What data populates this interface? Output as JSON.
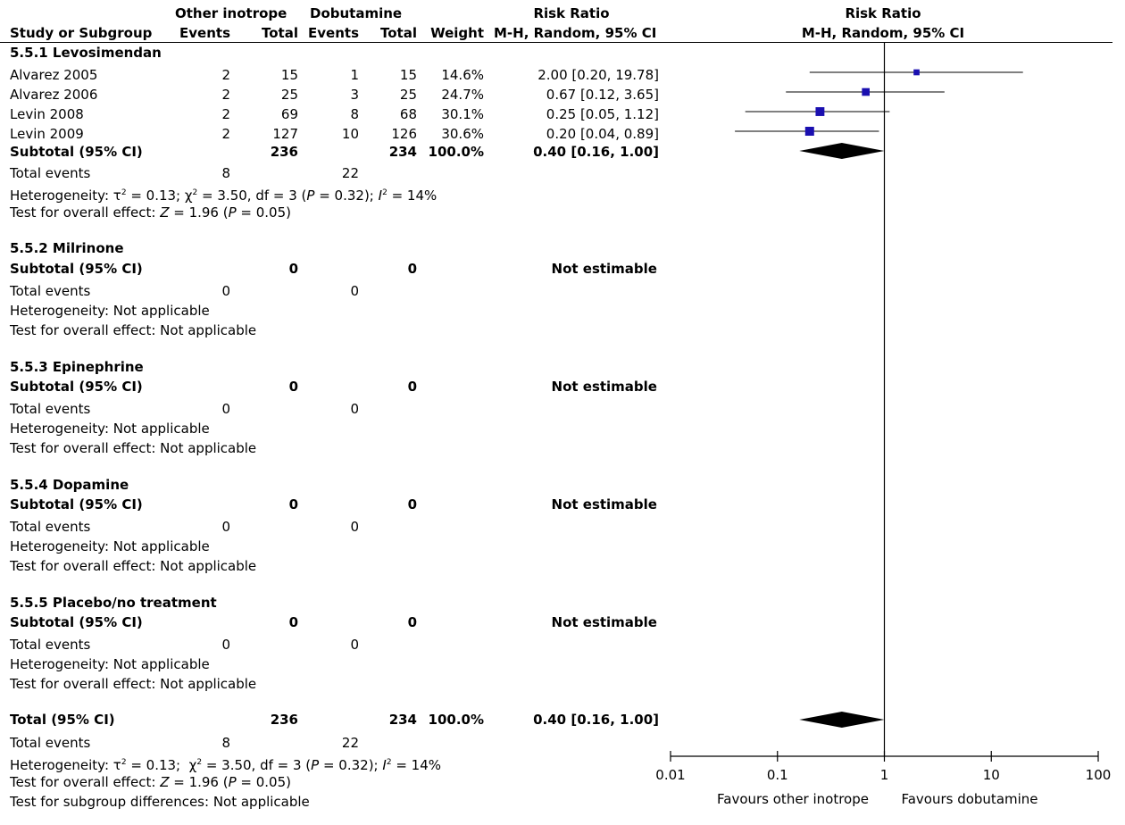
{
  "header": {
    "group1": "Other inotrope",
    "group2": "Dobutamine",
    "rr_title": "Risk Ratio",
    "rr_method": "M-H, Random, 95% CI",
    "plot_title": "Risk Ratio",
    "plot_method": "M-H, Random, 95% CI",
    "col_study": "Study or Subgroup",
    "col_events1": "Events",
    "col_total1": "Total",
    "col_events2": "Events",
    "col_total2": "Total",
    "col_weight": "Weight"
  },
  "subgroups": [
    {
      "title": "5.5.1 Levosimendan",
      "studies": [
        {
          "name": "Alvarez 2005",
          "e1": "2",
          "t1": "15",
          "e2": "1",
          "t2": "15",
          "weight": "14.6%",
          "rr": "2.00 [0.20, 19.78]"
        },
        {
          "name": "Alvarez 2006",
          "e1": "2",
          "t1": "25",
          "e2": "3",
          "t2": "25",
          "weight": "24.7%",
          "rr": "0.67 [0.12, 3.65]"
        },
        {
          "name": "Levin 2008",
          "e1": "2",
          "t1": "69",
          "e2": "8",
          "t2": "68",
          "weight": "30.1%",
          "rr": "0.25 [0.05, 1.12]"
        },
        {
          "name": "Levin 2009",
          "e1": "2",
          "t1": "127",
          "e2": "10",
          "t2": "126",
          "weight": "30.6%",
          "rr": "0.20 [0.04, 0.89]"
        }
      ],
      "subtotal": {
        "label": "Subtotal (95% CI)",
        "t1": "236",
        "t2": "234",
        "weight": "100.0%",
        "rr": "0.40 [0.16, 1.00]"
      },
      "total_events": {
        "label": "Total events",
        "e1": "8",
        "e2": "22"
      },
      "heterogeneity": {
        "prefix": "Heterogeneity: ",
        "tau": "τ",
        "tau_sup": "2",
        "tau_val": " = 0.13; ",
        "chi": "χ",
        "chi_sup": "2",
        "chi_val": " = 3.50, df = 3 (",
        "p": "P",
        "p_val": " = 0.32); ",
        "i": "I",
        "i_sup": "2",
        "i_val": " = 14%"
      },
      "overall": {
        "prefix": "Test for overall effect: ",
        "z": "Z",
        "z_val": " = 1.96 (",
        "p": "P",
        "p_val": " = 0.05)"
      }
    },
    {
      "title": "5.5.2 Milrinone",
      "subtotal": {
        "label": "Subtotal (95% CI)",
        "t1": "0",
        "t2": "0",
        "rr": "Not estimable"
      },
      "total_events": {
        "label": "Total events",
        "e1": "0",
        "e2": "0"
      },
      "heterogeneity_text": "Heterogeneity: Not applicable",
      "overall_text": "Test for overall effect: Not applicable"
    },
    {
      "title": "5.5.3 Epinephrine",
      "subtotal": {
        "label": "Subtotal (95% CI)",
        "t1": "0",
        "t2": "0",
        "rr": "Not estimable"
      },
      "total_events": {
        "label": "Total events",
        "e1": "0",
        "e2": "0"
      },
      "heterogeneity_text": "Heterogeneity: Not applicable",
      "overall_text": "Test for overall effect: Not applicable"
    },
    {
      "title": "5.5.4 Dopamine",
      "subtotal": {
        "label": "Subtotal (95% CI)",
        "t1": "0",
        "t2": "0",
        "rr": "Not estimable"
      },
      "total_events": {
        "label": "Total events",
        "e1": "0",
        "e2": "0"
      },
      "heterogeneity_text": "Heterogeneity: Not applicable",
      "overall_text": "Test for overall effect: Not applicable"
    },
    {
      "title": "5.5.5 Placebo/no treatment",
      "subtotal": {
        "label": "Subtotal (95% CI)",
        "t1": "0",
        "t2": "0",
        "rr": "Not estimable"
      },
      "total_events": {
        "label": "Total events",
        "e1": "0",
        "e2": "0"
      },
      "heterogeneity_text": "Heterogeneity: Not applicable",
      "overall_text": "Test for overall effect: Not applicable"
    }
  ],
  "total": {
    "label": "Total (95% CI)",
    "t1": "236",
    "t2": "234",
    "weight": "100.0%",
    "rr": "0.40 [0.16, 1.00]",
    "events_label": "Total events",
    "e1": "8",
    "e2": "22",
    "heterogeneity": {
      "prefix": "Heterogeneity: ",
      "tau": "τ",
      "tau_sup": "2",
      "tau_val": " = 0.13;  ",
      "chi": "χ",
      "chi_sup": "2",
      "chi_val": " = 3.50, df = 3 (",
      "p": "P",
      "p_val": " = 0.32); ",
      "i": "I",
      "i_sup": "2",
      "i_val": " = 14%"
    },
    "overall": {
      "prefix": "Test for overall effect: ",
      "z": "Z",
      "z_val": " = 1.96 (",
      "p": "P",
      "p_val": " = 0.05)"
    },
    "subgroup_diff": "Test for subgroup differences: Not applicable"
  },
  "chart_data": {
    "type": "forest",
    "scale": "log",
    "xlim": [
      0.01,
      100
    ],
    "ticks": [
      {
        "v": 0.01,
        "label": "0.01"
      },
      {
        "v": 0.1,
        "label": "0.1"
      },
      {
        "v": 1,
        "label": "1"
      },
      {
        "v": 10,
        "label": "10"
      },
      {
        "v": 100,
        "label": "100"
      }
    ],
    "null_value": 1,
    "left_label": "Favours other inotrope",
    "right_label": "Favours dobutamine",
    "marker_color": "#1a0fb0",
    "studies": [
      {
        "name": "Alvarez 2005",
        "rr": 2.0,
        "lo": 0.2,
        "hi": 19.78,
        "weight": 14.6
      },
      {
        "name": "Alvarez 2006",
        "rr": 0.67,
        "lo": 0.12,
        "hi": 3.65,
        "weight": 24.7
      },
      {
        "name": "Levin 2008",
        "rr": 0.25,
        "lo": 0.05,
        "hi": 1.12,
        "weight": 30.1
      },
      {
        "name": "Levin 2009",
        "rr": 0.2,
        "lo": 0.04,
        "hi": 0.89,
        "weight": 30.6
      }
    ],
    "subtotal": {
      "rr": 0.4,
      "lo": 0.16,
      "hi": 1.0
    },
    "total": {
      "rr": 0.4,
      "lo": 0.16,
      "hi": 1.0
    }
  }
}
